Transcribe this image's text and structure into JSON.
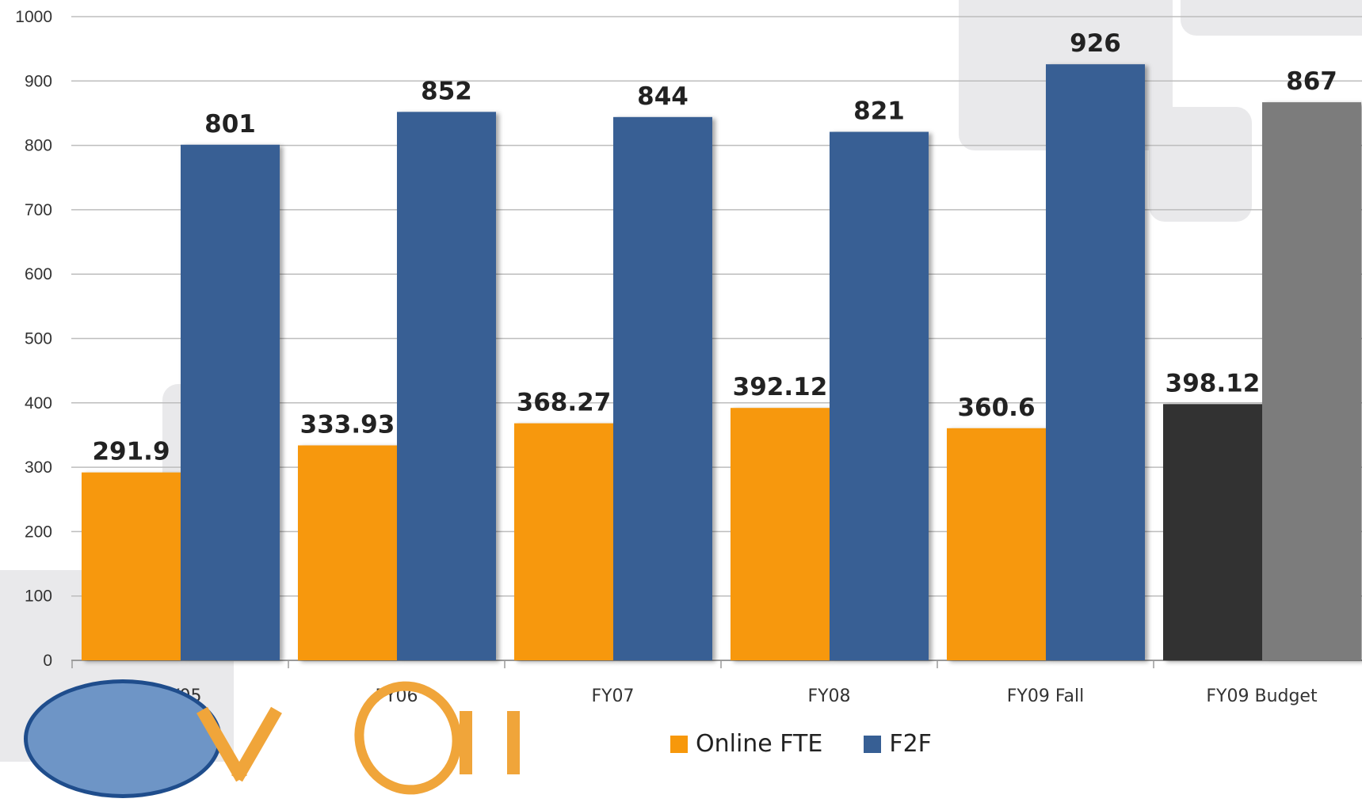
{
  "chart_data": {
    "type": "bar",
    "categories": [
      "FY05",
      "FY06",
      "FY07",
      "FY08",
      "FY09 Fall",
      "FY09 Budget"
    ],
    "series": [
      {
        "name": "Online FTE",
        "values": [
          291.9,
          333.93,
          368.27,
          392.12,
          360.6,
          398.12
        ],
        "color": "#f7980b"
      },
      {
        "name": "F2F",
        "values": [
          801,
          852,
          844,
          821,
          926,
          867
        ],
        "color": "#375f94"
      }
    ],
    "value_labels": {
      "Online FTE": [
        "291.9",
        "333.93",
        "368.27",
        "392.12",
        "360.6",
        "398.12"
      ],
      "F2F": [
        "801",
        "852",
        "844",
        "821",
        "926",
        "867"
      ]
    },
    "highlight": {
      "category": "FY09 Budget",
      "colors": {
        "Online FTE": "#333333",
        "F2F": "#7c7c7c"
      }
    },
    "ylim": [
      0,
      1000
    ],
    "yticks": [
      0,
      100,
      200,
      300,
      400,
      500,
      600,
      700,
      800,
      900,
      1000
    ],
    "ytick_labels": [
      "0",
      "100",
      "200",
      "300",
      "400",
      "500",
      "600",
      "700",
      "800",
      "900",
      "1000"
    ],
    "grid": true,
    "legend_position": "bottom-center"
  },
  "legend": {
    "items": [
      {
        "label": "Online FTE",
        "color": "#f7980b"
      },
      {
        "label": "F2F",
        "color": "#375f94"
      }
    ]
  }
}
